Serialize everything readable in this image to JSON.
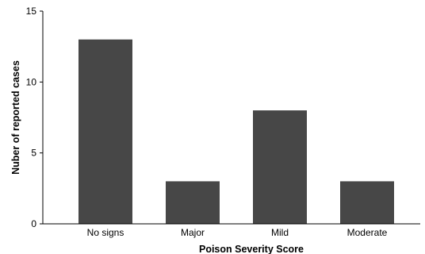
{
  "chart_data": {
    "type": "bar",
    "categories": [
      "No signs",
      "Major",
      "Mild",
      "Moderate"
    ],
    "values": [
      13,
      3,
      8,
      3
    ],
    "xlabel": "Poison Severity Score",
    "ylabel": "Nuber of reported cases",
    "ylim": [
      0,
      15
    ],
    "yticks": [
      0,
      5,
      10,
      15
    ],
    "grid": false,
    "bar_color": "#474747"
  }
}
